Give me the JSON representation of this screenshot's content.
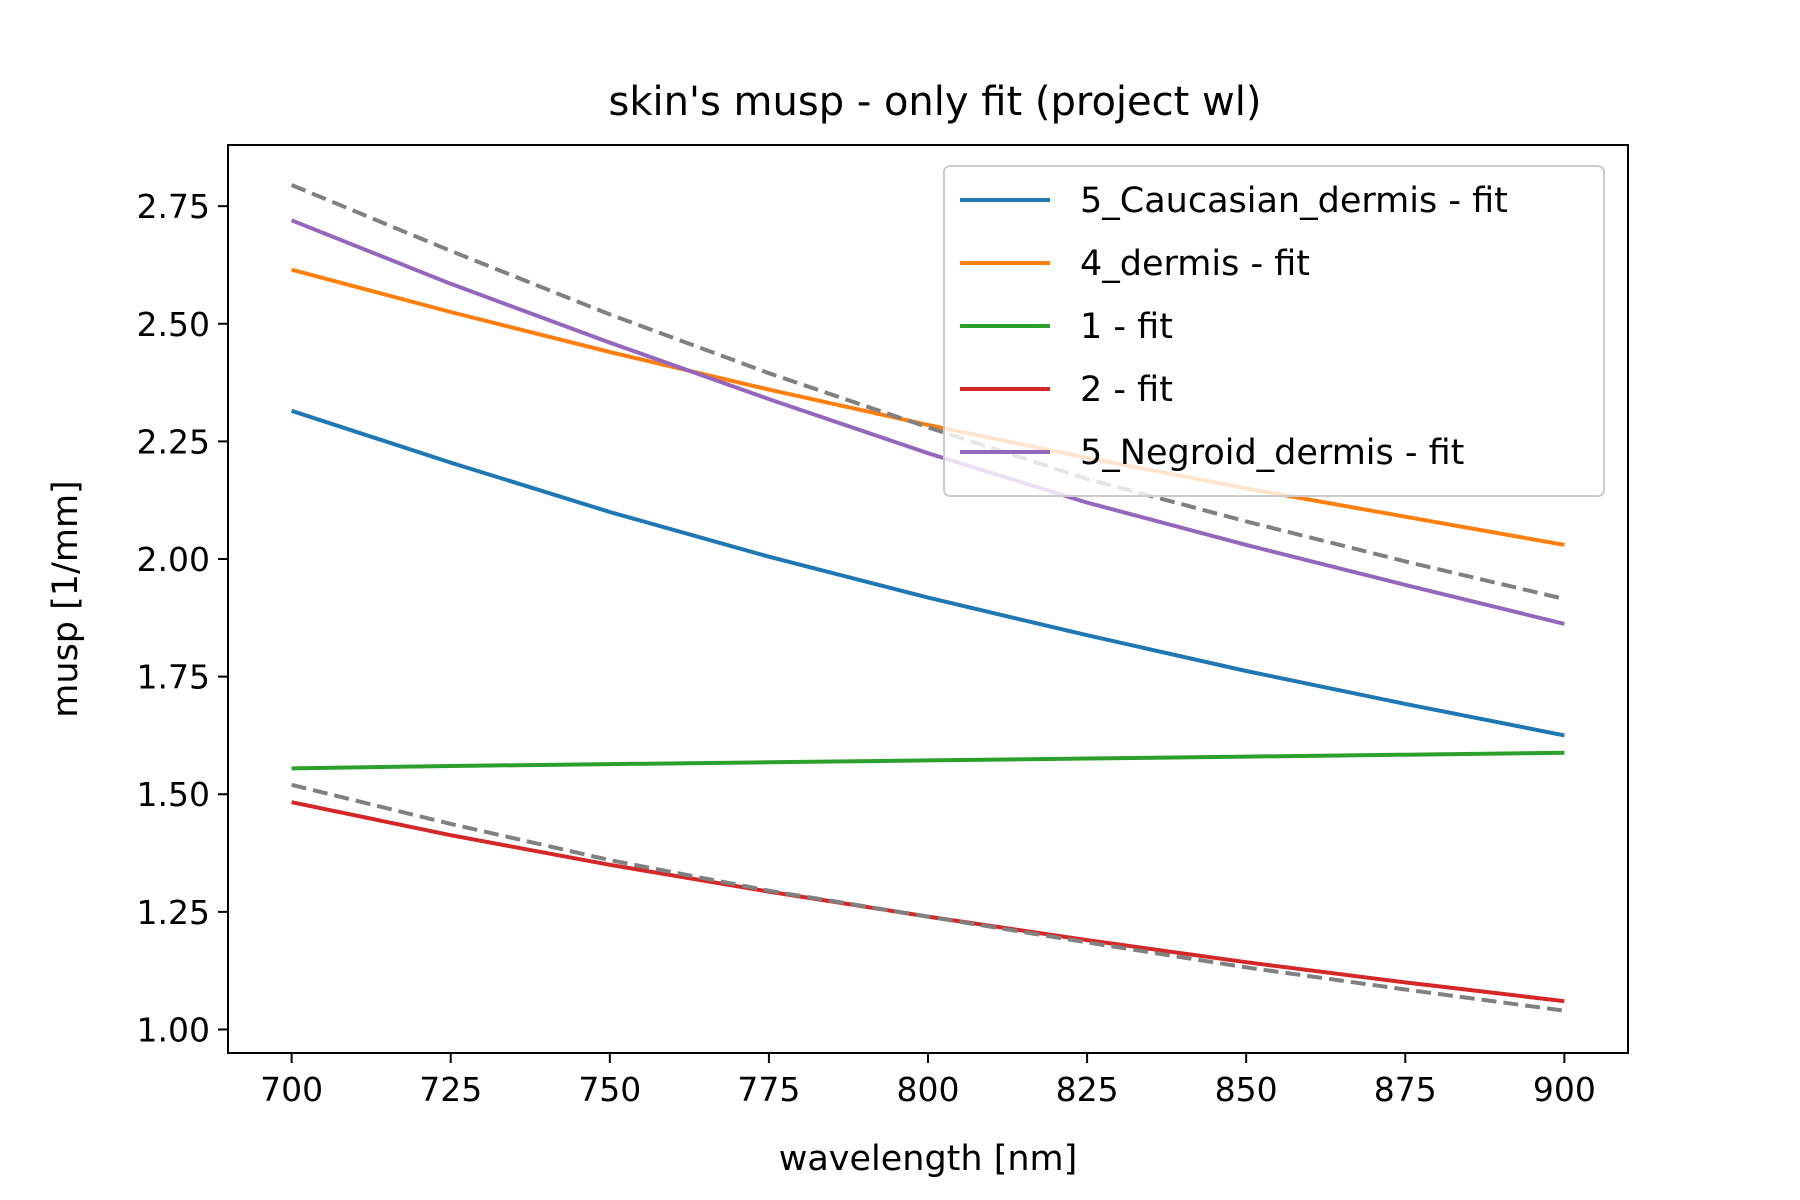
{
  "chart_data": {
    "type": "line",
    "title": "skin's musp - only fit (project wl)",
    "xlabel": "wavelength [nm]",
    "ylabel": "musp [1/mm]",
    "xlim": [
      690,
      910
    ],
    "ylim": [
      0.95,
      2.88
    ],
    "xticks": [
      "700",
      "725",
      "750",
      "775",
      "800",
      "825",
      "850",
      "875",
      "900"
    ],
    "yticks": [
      "1.00",
      "1.25",
      "1.50",
      "1.75",
      "2.00",
      "2.25",
      "2.50",
      "2.75"
    ],
    "grid": false,
    "legend_position": "upper right",
    "series": [
      {
        "name": "5_Caucasian_dermis - fit",
        "color": "#1f77b4",
        "style": "solid",
        "x": [
          700,
          725,
          750,
          775,
          800,
          825,
          850,
          875,
          900
        ],
        "y": [
          2.315,
          2.205,
          2.1,
          2.005,
          1.918,
          1.838,
          1.762,
          1.692,
          1.625
        ]
      },
      {
        "name": "4_dermis - fit",
        "color": "#ff7f0e",
        "style": "solid",
        "x": [
          700,
          725,
          750,
          775,
          800,
          825,
          850,
          875,
          900
        ],
        "y": [
          2.615,
          2.525,
          2.44,
          2.36,
          2.285,
          2.215,
          2.15,
          2.09,
          2.03
        ]
      },
      {
        "name": "1 - fit",
        "color": "#2ca02c",
        "style": "solid",
        "x": [
          700,
          725,
          750,
          775,
          800,
          825,
          850,
          875,
          900
        ],
        "y": [
          1.555,
          1.56,
          1.564,
          1.568,
          1.572,
          1.576,
          1.58,
          1.584,
          1.588
        ]
      },
      {
        "name": "2 - fit",
        "color": "#d62728",
        "style": "solid",
        "x": [
          700,
          725,
          750,
          775,
          800,
          825,
          850,
          875,
          900
        ],
        "y": [
          1.483,
          1.413,
          1.35,
          1.293,
          1.24,
          1.19,
          1.143,
          1.1,
          1.06
        ]
      },
      {
        "name": "5_Negroid_dermis - fit",
        "color": "#9467bd",
        "style": "solid",
        "x": [
          700,
          725,
          750,
          775,
          800,
          825,
          850,
          875,
          900
        ],
        "y": [
          2.72,
          2.585,
          2.46,
          2.34,
          2.225,
          2.12,
          2.03,
          1.945,
          1.862
        ]
      },
      {
        "name": "",
        "color": "#808080",
        "style": "dashed",
        "x": [
          700,
          725,
          750,
          775,
          800,
          825,
          850,
          875,
          900
        ],
        "y": [
          2.795,
          2.655,
          2.52,
          2.395,
          2.28,
          2.17,
          2.08,
          1.995,
          1.915
        ]
      },
      {
        "name": "",
        "color": "#808080",
        "style": "dashed",
        "x": [
          700,
          725,
          750,
          775,
          800,
          825,
          850,
          875,
          900
        ],
        "y": [
          1.52,
          1.437,
          1.36,
          1.295,
          1.24,
          1.185,
          1.132,
          1.085,
          1.04
        ]
      }
    ]
  }
}
